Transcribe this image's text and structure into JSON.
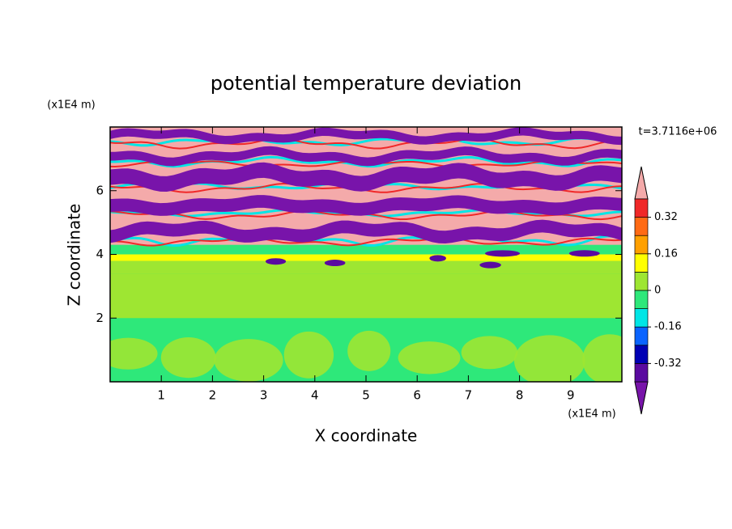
{
  "chart_data": {
    "type": "contour",
    "title": "potential temperature deviation",
    "xlabel": "X coordinate",
    "ylabel": "Z coordinate",
    "x_unit": "(x1E4 m)",
    "y_unit": "(x1E4 m)",
    "annotation": "t=3.7116e+06",
    "xlim": [
      0,
      10
    ],
    "ylim": [
      0,
      8
    ],
    "xticks": [
      1,
      2,
      3,
      4,
      5,
      6,
      7,
      8,
      9
    ],
    "yticks": [
      2,
      4,
      6
    ],
    "colorbar": {
      "levels": [
        -0.4,
        -0.32,
        -0.24,
        -0.16,
        -0.08,
        0,
        0.08,
        0.16,
        0.24,
        0.32,
        0.4
      ],
      "colors": [
        "#7814aa",
        "#5a0aa0",
        "#0000b4",
        "#0a64ff",
        "#00e6e6",
        "#2ee87a",
        "#9ee632",
        "#ffff00",
        "#ffa000",
        "#ff6a14",
        "#f02828",
        "#f4aaaa"
      ],
      "ticks": [
        -0.32,
        -0.16,
        0,
        0.16,
        0.32
      ]
    }
  }
}
